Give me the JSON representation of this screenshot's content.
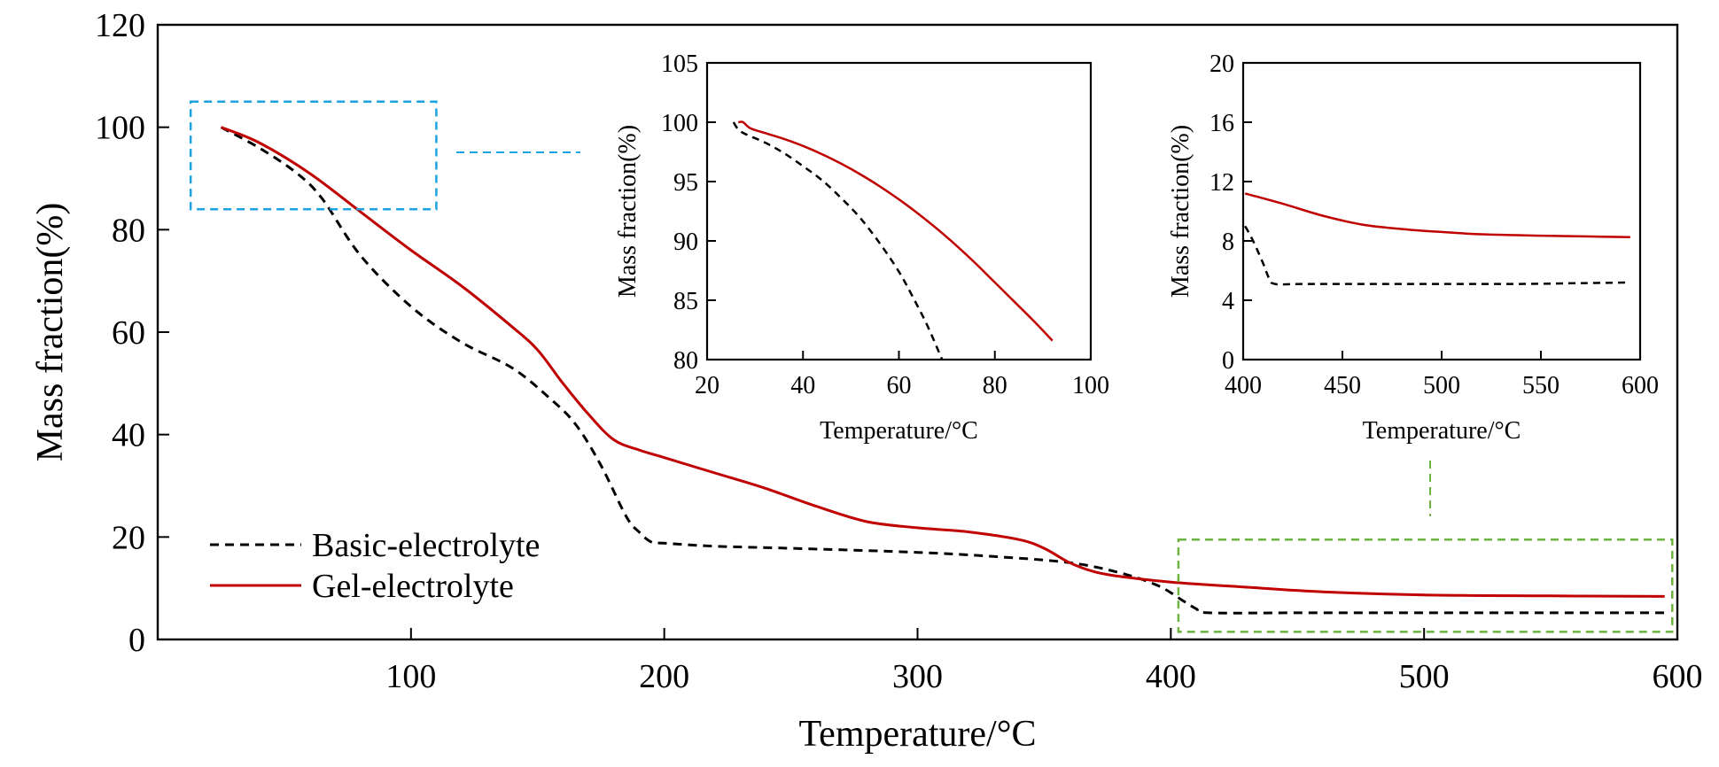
{
  "colors": {
    "basic": "#000000",
    "gel": "#c00000",
    "zoom_box_1": "#1aa3e0",
    "zoom_box_2": "#6cb33f"
  },
  "chart_data": [
    {
      "id": "main",
      "type": "line",
      "title": "",
      "xlabel": "Temperature/°C",
      "ylabel": "Mass fraction(%)",
      "xlim": [
        0,
        600
      ],
      "ylim": [
        0,
        120
      ],
      "xticks": [
        100,
        200,
        300,
        400,
        500,
        600
      ],
      "yticks": [
        0,
        20,
        40,
        60,
        80,
        100,
        120
      ],
      "legend": {
        "position": "bottom-left",
        "entries": [
          "Basic-electrolyte",
          "Gel-electrolyte"
        ]
      },
      "series": [
        {
          "name": "Basic-electrolyte",
          "style": "dashed",
          "x": [
            25,
            40,
            55,
            65,
            80,
            100,
            120,
            140,
            155,
            165,
            175,
            185,
            190,
            195,
            200,
            220,
            250,
            300,
            330,
            360,
            380,
            395,
            405,
            410,
            415,
            450,
            500,
            550,
            595
          ],
          "y": [
            100,
            96,
            91,
            86,
            75,
            65,
            58,
            53,
            47,
            42,
            34,
            24,
            21,
            19,
            18.8,
            18.2,
            17.8,
            17,
            16.2,
            15,
            13,
            10.5,
            7.5,
            6,
            5.2,
            5.2,
            5.2,
            5.2,
            5.2
          ]
        },
        {
          "name": "Gel-electrolyte",
          "style": "solid",
          "x": [
            25,
            40,
            60,
            80,
            100,
            120,
            140,
            150,
            160,
            170,
            180,
            190,
            200,
            220,
            240,
            260,
            280,
            300,
            320,
            340,
            350,
            360,
            370,
            380,
            400,
            430,
            460,
            500,
            550,
            595
          ],
          "y": [
            100,
            97,
            91,
            83.5,
            76,
            69,
            61,
            56.5,
            50,
            44,
            39,
            37,
            35.5,
            32.5,
            29.5,
            26,
            23,
            21.8,
            21,
            19.5,
            17.8,
            15,
            13.2,
            12.3,
            11.2,
            10.2,
            9.3,
            8.7,
            8.5,
            8.4
          ]
        }
      ],
      "zoom_regions": [
        {
          "x": [
            13,
            110
          ],
          "y": [
            84,
            105
          ]
        },
        {
          "x": [
            403,
            598
          ],
          "y": [
            1.5,
            19.5
          ]
        }
      ]
    },
    {
      "id": "inset-left",
      "type": "line",
      "title": "",
      "xlabel": "Temperature/°C",
      "ylabel": "Mass fraction(%)",
      "xlim": [
        20,
        100
      ],
      "ylim": [
        80,
        105
      ],
      "xticks": [
        20,
        40,
        60,
        80,
        100
      ],
      "yticks": [
        80,
        85,
        90,
        95,
        100,
        105
      ],
      "series": [
        {
          "name": "Basic-electrolyte",
          "style": "dashed",
          "x": [
            25.5,
            26.5,
            28,
            32,
            36,
            40,
            44,
            48,
            52,
            56,
            60,
            63,
            66,
            69
          ],
          "y": [
            100,
            99.4,
            99,
            98.3,
            97.4,
            96.3,
            95.1,
            93.6,
            91.9,
            89.8,
            87.4,
            85.2,
            82.8,
            80
          ]
        },
        {
          "name": "Gel-electrolyte",
          "style": "solid",
          "x": [
            26.5,
            27.5,
            29,
            32,
            36,
            40,
            44,
            48,
            52,
            56,
            60,
            64,
            68,
            72,
            76,
            80,
            84,
            88,
            92
          ],
          "y": [
            100,
            100,
            99.5,
            99.1,
            98.6,
            98,
            97.3,
            96.5,
            95.6,
            94.6,
            93.5,
            92.3,
            91,
            89.6,
            88.1,
            86.5,
            84.9,
            83.3,
            81.6
          ]
        }
      ]
    },
    {
      "id": "inset-right",
      "type": "line",
      "title": "",
      "xlabel": "Temperature/°C",
      "ylabel": "Mass fraction(%)",
      "xlim": [
        400,
        600
      ],
      "ylim": [
        0,
        20
      ],
      "xticks": [
        400,
        450,
        500,
        550,
        600
      ],
      "yticks": [
        0,
        4,
        8,
        12,
        16,
        20
      ],
      "series": [
        {
          "name": "Basic-electrolyte",
          "style": "dashed",
          "x": [
            401,
            405,
            410,
            413,
            416,
            430,
            460,
            500,
            540,
            570,
            595
          ],
          "y": [
            9,
            8,
            6.5,
            5.5,
            5.1,
            5.1,
            5.1,
            5.1,
            5.1,
            5.15,
            5.2
          ]
        },
        {
          "name": "Gel-electrolyte",
          "style": "solid",
          "x": [
            401,
            420,
            440,
            460,
            480,
            500,
            520,
            550,
            575,
            595
          ],
          "y": [
            11.2,
            10.5,
            9.7,
            9.1,
            8.8,
            8.6,
            8.45,
            8.35,
            8.3,
            8.25
          ]
        }
      ]
    }
  ]
}
